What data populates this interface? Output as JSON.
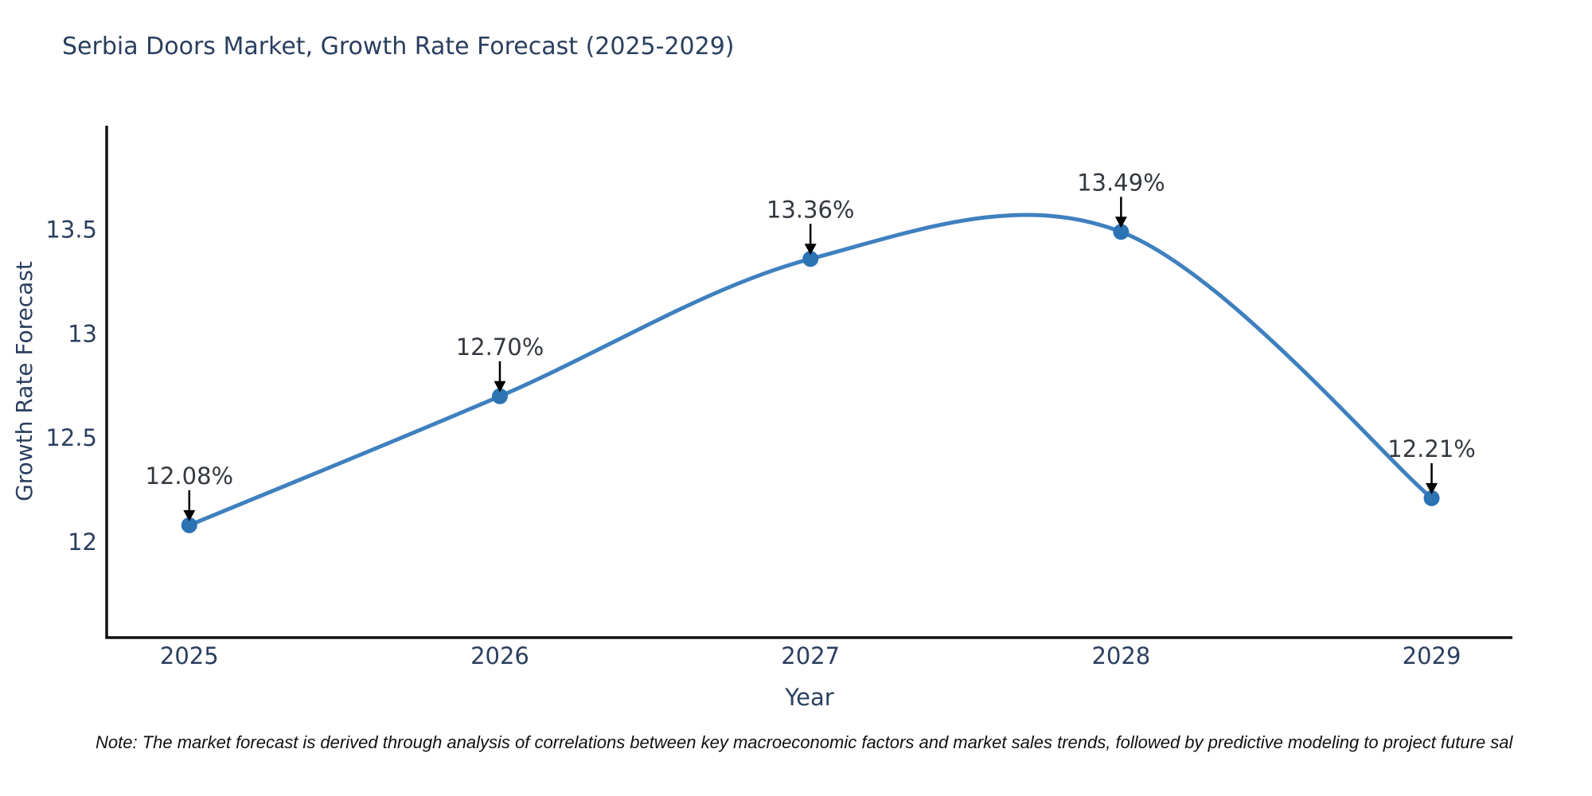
{
  "title": "Serbia Doors Market, Growth Rate Forecast (2025-2029)",
  "note": "Note: The market forecast is derived through analysis of correlations between key macroeconomic factors and market sales trends, followed by predictive modeling to project future sal",
  "chart_data": {
    "type": "line",
    "line_shape": "spline",
    "title": "Serbia Doors Market, Growth Rate Forecast (2025-2029)",
    "xlabel": "Year",
    "ylabel": "Growth Rate Forecast",
    "x": [
      2025,
      2026,
      2027,
      2028,
      2029
    ],
    "series": [
      {
        "name": "Growth Rate Forecast",
        "values": [
          12.08,
          12.7,
          13.36,
          13.49,
          12.21
        ]
      }
    ],
    "point_labels": [
      "12.08%",
      "12.70%",
      "13.36%",
      "13.49%",
      "12.21%"
    ],
    "xticks": [
      "2025",
      "2026",
      "2027",
      "2028",
      "2029"
    ],
    "xtick_values": [
      2025,
      2026,
      2027,
      2028,
      2029
    ],
    "yticks": [
      "12",
      "12.5",
      "13",
      "13.5"
    ],
    "ytick_values": [
      12,
      12.5,
      13,
      13.5
    ],
    "x_range": [
      2024.734,
      2029.26
    ],
    "y_range": [
      11.54,
      14.0
    ],
    "grid": false,
    "legend": false,
    "annotations_have_arrows": true,
    "colors": {
      "line": "#3f80bf",
      "marker": "#2c73b4",
      "axis_line": "#111111",
      "text": "#2a3f5f",
      "annotation_text": "#34393f",
      "arrow": "#000000",
      "background": "#ffffff",
      "note_text": "#111111"
    }
  }
}
